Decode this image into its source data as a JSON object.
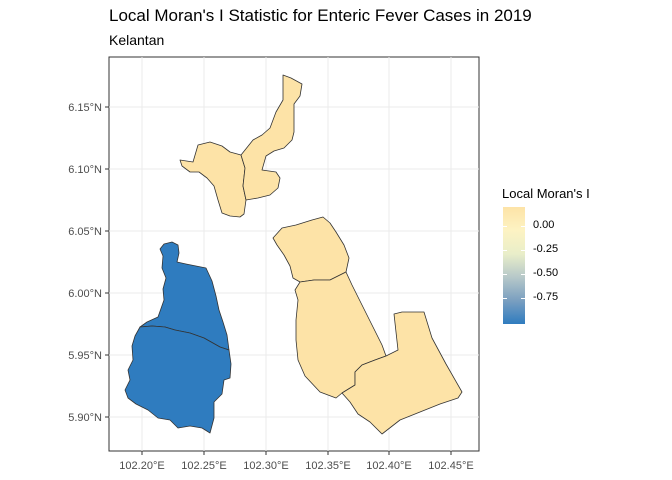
{
  "title": "Local Moran's I Statistic for Enteric Fever Cases in 2019",
  "subtitle": "Kelantan",
  "axes": {
    "x_ticks": [
      "102.20°E",
      "102.25°E",
      "102.30°E",
      "102.35°E",
      "102.40°E",
      "102.45°E"
    ],
    "y_ticks": [
      "6.15°N",
      "6.10°N",
      "6.05°N",
      "6.00°N",
      "5.95°N",
      "5.90°N"
    ]
  },
  "legend": {
    "title": "Local Moran's I",
    "labels": [
      "0.00",
      "-0.25",
      "-0.50",
      "-0.75"
    ],
    "colors": {
      "high": "#fde3a7",
      "mid": "#fdf3c3",
      "low": "#2f7cbf"
    }
  },
  "map": {
    "regions": [
      {
        "name": "north-small",
        "fill": "#fde3a7",
        "value": 0.1
      },
      {
        "name": "north-large",
        "fill": "#fde3a7",
        "value": 0.1
      },
      {
        "name": "west-upper",
        "fill": "#2f7cbf",
        "value": -0.9
      },
      {
        "name": "west-lower",
        "fill": "#2f7cbf",
        "value": -0.9
      },
      {
        "name": "east-top",
        "fill": "#fde3a7",
        "value": 0.1
      },
      {
        "name": "east-middle",
        "fill": "#fde3a7",
        "value": 0.1
      },
      {
        "name": "east-bottom",
        "fill": "#fde3a7",
        "value": 0.1
      }
    ]
  }
}
